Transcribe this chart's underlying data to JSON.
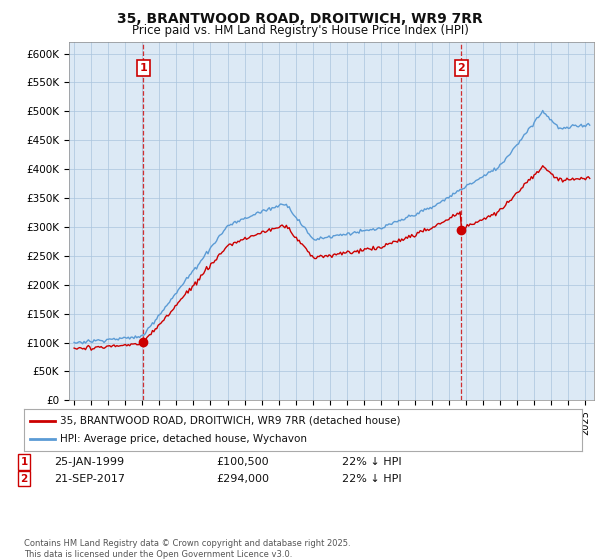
{
  "title": "35, BRANTWOOD ROAD, DROITWICH, WR9 7RR",
  "subtitle": "Price paid vs. HM Land Registry's House Price Index (HPI)",
  "ylim": [
    0,
    620000
  ],
  "yticks": [
    0,
    50000,
    100000,
    150000,
    200000,
    250000,
    300000,
    350000,
    400000,
    450000,
    500000,
    550000,
    600000
  ],
  "ytick_labels": [
    "£0",
    "£50K",
    "£100K",
    "£150K",
    "£200K",
    "£250K",
    "£300K",
    "£350K",
    "£400K",
    "£450K",
    "£500K",
    "£550K",
    "£600K"
  ],
  "background_color": "#ffffff",
  "plot_background": "#dce9f5",
  "grid_color": "#aac4dd",
  "hpi_color": "#5b9bd5",
  "price_color": "#cc0000",
  "vline_color": "#cc0000",
  "legend_label_price": "35, BRANTWOOD ROAD, DROITWICH, WR9 7RR (detached house)",
  "legend_label_hpi": "HPI: Average price, detached house, Wychavon",
  "sale1_year": 1999.07,
  "sale1_price": 100500,
  "sale2_year": 2017.72,
  "sale2_price": 294000,
  "footnote": "Contains HM Land Registry data © Crown copyright and database right 2025.\nThis data is licensed under the Open Government Licence v3.0."
}
